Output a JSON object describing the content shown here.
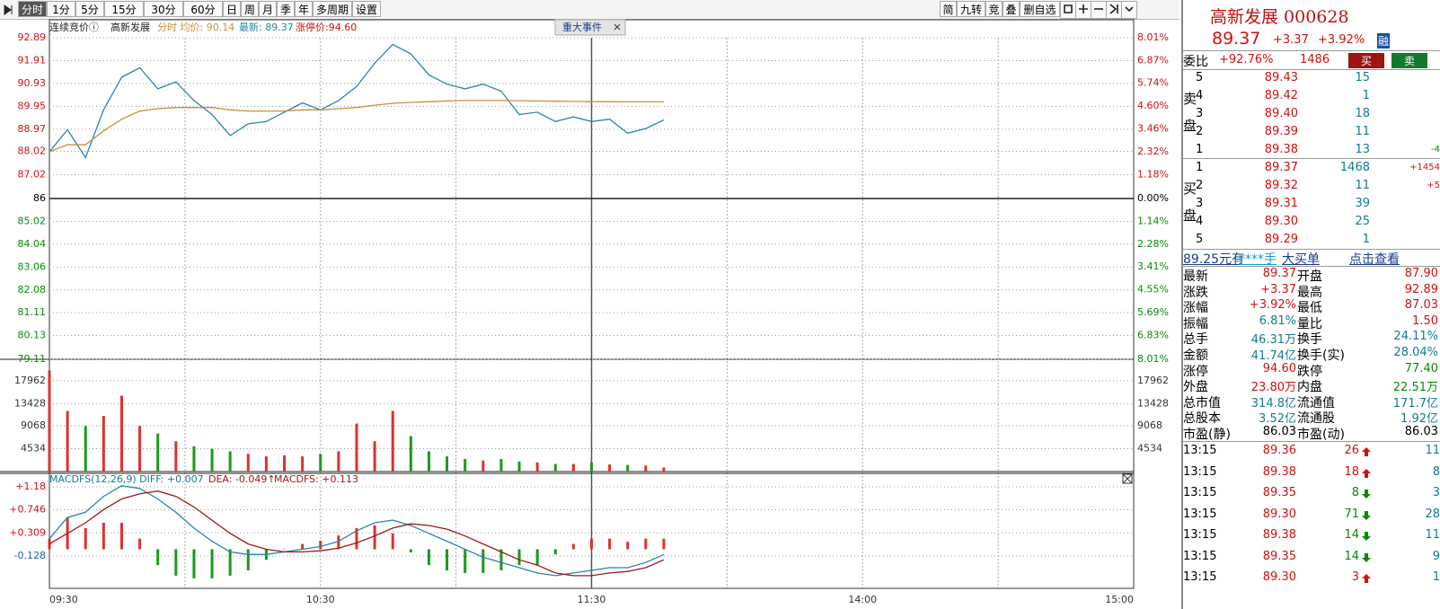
{
  "toolbar": {
    "periods": [
      "分时",
      "1分",
      "5分",
      "15分",
      "30分",
      "60分",
      "日",
      "周",
      "月",
      "季",
      "年",
      "多周期",
      "设置"
    ],
    "tools": [
      "简",
      "九转",
      "竞",
      "叠",
      "删自选"
    ]
  },
  "chart_data": [
    {
      "type": "line",
      "status": "连续竞价ⓘ",
      "name": "高新发展",
      "avg_label": "分时 均价: 90.14",
      "last_label": "最新: 89.37",
      "limit_label": "涨停价:94.60",
      "event": "重大事件",
      "ylim": [
        79.11,
        92.89
      ],
      "yticks": [
        92.89,
        91.91,
        90.93,
        89.95,
        88.97,
        88.02,
        87.02,
        86.0,
        85.02,
        84.04,
        83.06,
        82.08,
        81.11,
        80.13,
        79.11
      ],
      "y2lim": [
        -8.01,
        8.01
      ],
      "y2ticks": [
        {
          "value": 8.01,
          "label": "8.01%"
        },
        {
          "value": 6.87,
          "label": "6.87%"
        },
        {
          "value": 5.74,
          "label": "5.74%"
        },
        {
          "value": 4.6,
          "label": "4.60%"
        },
        {
          "value": 3.46,
          "label": "3.46%"
        },
        {
          "value": 2.32,
          "label": "2.32%"
        },
        {
          "value": 1.18,
          "label": "1.18%"
        },
        {
          "value": 0,
          "label": "0.00%"
        },
        {
          "value": -1.14,
          "label": "1.14%"
        },
        {
          "value": -2.28,
          "label": "2.28%"
        },
        {
          "value": -3.41,
          "label": "3.41%"
        },
        {
          "value": -4.55,
          "label": "4.55%"
        },
        {
          "value": -5.69,
          "label": "5.69%"
        },
        {
          "value": -6.83,
          "label": "6.83%"
        },
        {
          "value": -8.01,
          "label": "8.01%"
        }
      ],
      "series": [
        {
          "color": "#2a86a8",
          "values": [
            88.0,
            88.95,
            87.75,
            89.8,
            91.2,
            91.6,
            90.7,
            91.0,
            90.2,
            89.6,
            88.7,
            89.2,
            89.3,
            89.7,
            90.1,
            89.8,
            90.2,
            90.8,
            91.8,
            92.6,
            92.2,
            91.3,
            90.9,
            90.7,
            90.9,
            90.6,
            89.6,
            89.7,
            89.3,
            89.5,
            89.3,
            89.4,
            88.8,
            89.0,
            89.37
          ]
        },
        {
          "color": "#c8903a",
          "values": [
            88.0,
            88.3,
            88.3,
            88.9,
            89.4,
            89.75,
            89.85,
            89.9,
            89.9,
            89.9,
            89.8,
            89.75,
            89.75,
            89.75,
            89.8,
            89.8,
            89.85,
            89.9,
            90.0,
            90.08,
            90.12,
            90.15,
            90.18,
            90.2,
            90.2,
            90.2,
            90.19,
            90.18,
            90.17,
            90.16,
            90.15,
            90.15,
            90.14,
            90.14,
            90.14
          ]
        }
      ]
    },
    {
      "type": "bar",
      "ylim": [
        0,
        22200
      ],
      "yticks": [
        17962,
        13428,
        9068,
        4534
      ],
      "up_color": "#e03030",
      "down_color": "#1a9a1a",
      "values": [
        20000,
        12000,
        9000,
        11000,
        15000,
        9000,
        7500,
        6000,
        5000,
        4500,
        4000,
        3500,
        3000,
        3200,
        3000,
        3500,
        4000,
        9500,
        6000,
        12000,
        7000,
        4000,
        3000,
        2500,
        2200,
        2500,
        2000,
        1800,
        1500,
        1500,
        1800,
        1400,
        1300,
        1200,
        800
      ]
    },
    {
      "type": "line",
      "title": "MACDFS(12,26,9) DIFF: +0.007",
      "dea_label": "DEA: -0.049↑",
      "macd_label": "MACDFS: +0.113",
      "ylim": [
        -0.74,
        1.435
      ],
      "yticks": [
        {
          "value": 1.18,
          "label": "+1.18"
        },
        {
          "value": 0.746,
          "label": "+0.746"
        },
        {
          "value": 0.309,
          "label": "+0.309"
        },
        {
          "value": -0.128,
          "label": "-0.128"
        }
      ],
      "xticks": [
        "09:30",
        "10:30",
        "11:30",
        "14:00",
        "15:00"
      ],
      "series": [
        {
          "color": "#2a86a8",
          "values": [
            0.2,
            0.6,
            0.7,
            1.0,
            1.2,
            1.15,
            0.95,
            0.7,
            0.4,
            0.15,
            -0.05,
            -0.1,
            -0.1,
            -0.05,
            0.0,
            0.05,
            0.15,
            0.35,
            0.5,
            0.55,
            0.45,
            0.3,
            0.15,
            0.0,
            -0.15,
            -0.25,
            -0.35,
            -0.45,
            -0.5,
            -0.45,
            -0.4,
            -0.35,
            -0.35,
            -0.25,
            -0.1
          ]
        },
        {
          "color": "#a01818",
          "values": [
            0.1,
            0.3,
            0.5,
            0.75,
            0.95,
            1.05,
            1.1,
            1.0,
            0.8,
            0.55,
            0.3,
            0.1,
            0.0,
            -0.05,
            -0.05,
            -0.03,
            0.02,
            0.12,
            0.25,
            0.4,
            0.48,
            0.45,
            0.38,
            0.25,
            0.1,
            -0.05,
            -0.2,
            -0.3,
            -0.45,
            -0.5,
            -0.5,
            -0.45,
            -0.42,
            -0.35,
            -0.2
          ]
        }
      ],
      "bars": {
        "up_color": "#e03030",
        "down_color": "#1a9a1a",
        "values": [
          0.2,
          0.6,
          0.4,
          0.5,
          0.5,
          0.2,
          -0.3,
          -0.5,
          -0.55,
          -0.55,
          -0.5,
          -0.4,
          -0.2,
          0,
          0.1,
          0.16,
          0.26,
          0.4,
          0.45,
          0.3,
          -0.06,
          -0.3,
          -0.4,
          -0.45,
          -0.45,
          -0.4,
          -0.3,
          -0.3,
          -0.1,
          0.1,
          0.2,
          0.2,
          0.14,
          0.2,
          0.2
        ]
      }
    }
  ],
  "quote": {
    "name": "高新发展 000628",
    "price": "89.37",
    "change": "+3.37",
    "pct": "+3.92%",
    "badge": "融",
    "ratio_label": "委比",
    "ratio": "+92.76%",
    "diff": "1486",
    "buy_btn": "买",
    "sell_btn": "卖",
    "sell_label": [
      "卖",
      "盘"
    ],
    "buy_label": [
      "买",
      "盘"
    ],
    "asks": [
      {
        "level": "5",
        "price": "89.43",
        "vol": "15"
      },
      {
        "level": "4",
        "price": "89.42",
        "vol": "1"
      },
      {
        "level": "3",
        "price": "89.40",
        "vol": "18"
      },
      {
        "level": "2",
        "price": "89.39",
        "vol": "11"
      },
      {
        "level": "1",
        "price": "89.38",
        "vol": "13",
        "delta": "-4"
      }
    ],
    "bids": [
      {
        "level": "1",
        "price": "89.37",
        "vol": "1468",
        "delta": "+1454"
      },
      {
        "level": "2",
        "price": "89.32",
        "vol": "11",
        "delta": "+5"
      },
      {
        "level": "3",
        "price": "89.31",
        "vol": "39"
      },
      {
        "level": "4",
        "price": "89.30",
        "vol": "25"
      },
      {
        "level": "5",
        "price": "89.29",
        "vol": "1"
      }
    ],
    "banner": [
      "89.25元有",
      "****手",
      "大买单",
      "点击查看"
    ],
    "stats": [
      [
        "最新",
        "89.37",
        "开盘",
        "87.90"
      ],
      [
        "涨跌",
        "+3.37",
        "最高",
        "92.89"
      ],
      [
        "涨幅",
        "+3.92%",
        "最低",
        "87.03"
      ],
      [
        "振幅",
        "6.81%",
        "量比",
        "1.50"
      ],
      [
        "总手",
        "46.31万",
        "换手",
        "24.11%"
      ],
      [
        "金额",
        "41.74亿",
        "换手(实)",
        "28.04%"
      ],
      [
        "涨停",
        "94.60",
        "跌停",
        "77.40"
      ],
      [
        "外盘",
        "23.80万",
        "内盘",
        "22.51万"
      ],
      [
        "总市值",
        "314.8亿",
        "流通值",
        "171.7亿"
      ],
      [
        "总股本",
        "3.52亿",
        "流通股",
        "1.92亿"
      ],
      [
        "市盈(静)",
        "86.03",
        "市盈(动)",
        "86.03"
      ]
    ],
    "trades": [
      {
        "time": "13:15",
        "price": "89.36",
        "vol": "26",
        "dir": "up",
        "count": "11"
      },
      {
        "time": "13:15",
        "price": "89.38",
        "vol": "18",
        "dir": "up",
        "count": "8"
      },
      {
        "time": "13:15",
        "price": "89.35",
        "vol": "8",
        "dir": "down",
        "count": "3"
      },
      {
        "time": "13:15",
        "price": "89.30",
        "vol": "71",
        "dir": "down",
        "count": "28"
      },
      {
        "time": "13:15",
        "price": "89.38",
        "vol": "14",
        "dir": "down",
        "count": "11"
      },
      {
        "time": "13:15",
        "price": "89.35",
        "vol": "14",
        "dir": "down",
        "count": "9"
      },
      {
        "time": "13:15",
        "price": "89.30",
        "vol": "3",
        "dir": "up",
        "count": "1"
      }
    ]
  }
}
